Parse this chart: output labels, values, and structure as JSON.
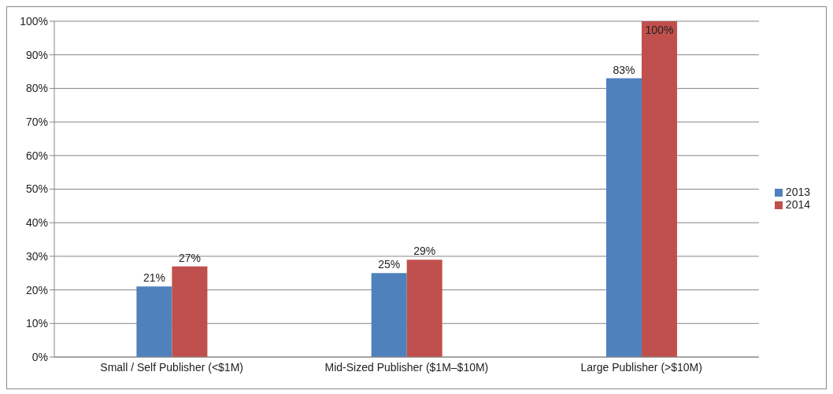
{
  "chart_data": {
    "type": "bar",
    "categories": [
      "Small / Self Publisher (<$1M)",
      "Mid-Sized Publisher ($1M–$10M)",
      "Large Publisher (>$10M)"
    ],
    "series": [
      {
        "name": "2013",
        "color": "#4f81bd",
        "values": [
          21,
          25,
          83
        ],
        "value_labels": [
          "21%",
          "25%",
          "83%"
        ]
      },
      {
        "name": "2014",
        "color": "#c0504d",
        "values": [
          27,
          29,
          100
        ],
        "value_labels": [
          "27%",
          "29%",
          "100%"
        ]
      }
    ],
    "ylim": [
      0,
      100
    ],
    "yticks": [
      {
        "value": 0,
        "label": "0%"
      },
      {
        "value": 10,
        "label": "10%"
      },
      {
        "value": 20,
        "label": "20%"
      },
      {
        "value": 30,
        "label": "30%"
      },
      {
        "value": 40,
        "label": "40%"
      },
      {
        "value": 50,
        "label": "50%"
      },
      {
        "value": 60,
        "label": "60%"
      },
      {
        "value": 70,
        "label": "70%"
      },
      {
        "value": 80,
        "label": "80%"
      },
      {
        "value": 90,
        "label": "90%"
      },
      {
        "value": 100,
        "label": "100%"
      }
    ],
    "grid": "y",
    "legend": "right"
  }
}
